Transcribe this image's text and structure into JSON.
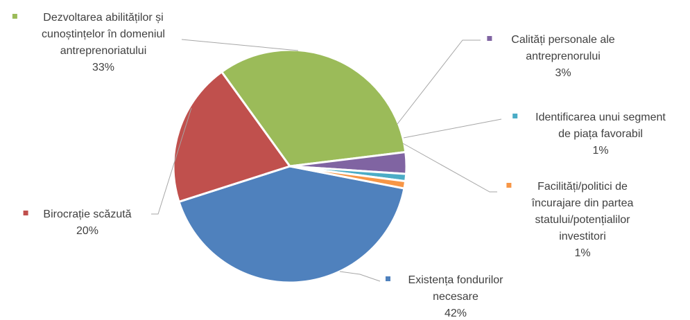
{
  "chart_data": {
    "type": "pie",
    "slices": [
      {
        "label": "Existența fondurilor necesare",
        "lines": [
          "Existența fondurilor",
          "necesare"
        ],
        "value": 42,
        "value_label": "42%",
        "color": "#4F81BD"
      },
      {
        "label": "Birocrație scăzută",
        "lines": [
          "Birocrație scăzută"
        ],
        "value": 20,
        "value_label": "20%",
        "color": "#C0504D"
      },
      {
        "label": "Dezvoltarea abilităților și cunoștințelor în domeniul antreprenoriatului",
        "lines": [
          "Dezvoltarea abilităților și",
          "cunoștințelor în domeniul",
          "antreprenoriatului"
        ],
        "value": 33,
        "value_label": "33%",
        "color": "#9BBB59"
      },
      {
        "label": "Calități personale ale antreprenorului",
        "lines": [
          "Calități personale ale",
          "antreprenorului"
        ],
        "value": 3,
        "value_label": "3%",
        "color": "#8064A2"
      },
      {
        "label": "Identificarea unui segment de piața favorabil",
        "lines": [
          "Identificarea unui segment",
          "de piața favorabil"
        ],
        "value": 1,
        "value_label": "1%",
        "color": "#4BACC6"
      },
      {
        "label": "Facilități/politici de încurajare din partea statului/potențialilor investitori",
        "lines": [
          "Facilități/politici de",
          "încurajare din partea",
          "statului/potențialilor",
          "investitori"
        ],
        "value": 1,
        "value_label": "1%",
        "color": "#F79646"
      }
    ]
  }
}
